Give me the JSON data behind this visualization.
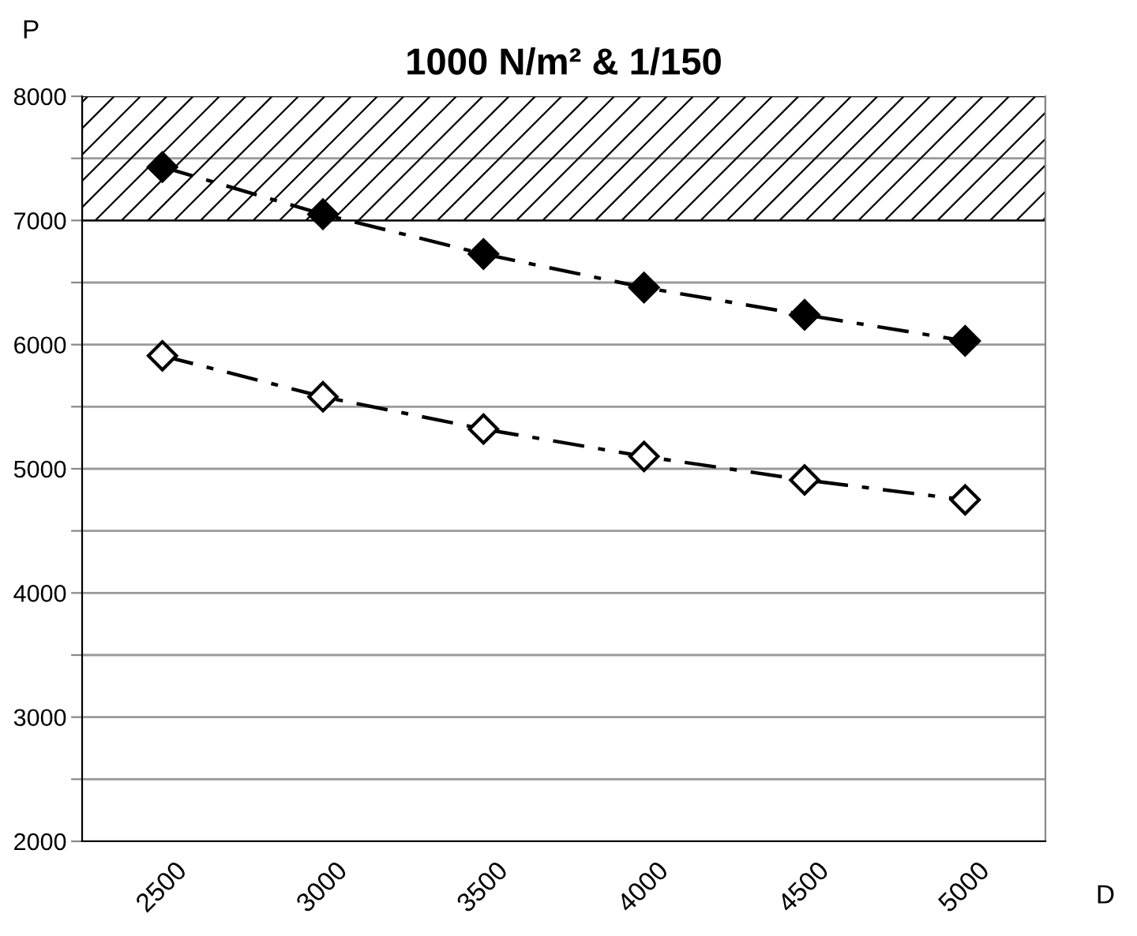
{
  "chart_data": {
    "type": "line",
    "title": "1000 N/m² & 1/150",
    "xlabel": "D",
    "ylabel": "P",
    "categories": [
      "2500",
      "3000",
      "3500",
      "4000",
      "4500",
      "5000"
    ],
    "series": [
      {
        "color": "#000000",
        "values": [
          7430,
          7050,
          6730,
          6460,
          6240,
          6030
        ]
      },
      {
        "color": "#ffffff",
        "values": [
          5910,
          5580,
          5320,
          5100,
          4910,
          4750
        ]
      }
    ],
    "ylim": [
      2000,
      8000
    ],
    "yticks": [
      2000,
      {
        "value": 2500,
        "label": null
      },
      3000,
      {
        "value": 3500,
        "label": null
      },
      4000,
      {
        "value": 4500,
        "label": null
      },
      5000,
      {
        "value": 5500,
        "label": null
      },
      6000,
      {
        "value": 6500,
        "label": null
      },
      7000,
      {
        "value": 7500,
        "label": null
      },
      8000
    ],
    "grid": "y",
    "marker": "diamond",
    "line_style": "dashed",
    "bands": [
      {
        "axis": "y",
        "from": 7000,
        "to": 8000,
        "color": "#000000"
      }
    ]
  }
}
